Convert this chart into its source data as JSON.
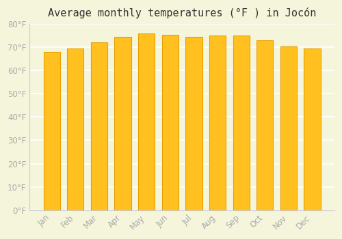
{
  "title": "Average monthly temperatures (°F ) in Jocón",
  "months": [
    "Jan",
    "Feb",
    "Mar",
    "Apr",
    "May",
    "Jun",
    "Jul",
    "Aug",
    "Sep",
    "Oct",
    "Nov",
    "Dec"
  ],
  "values": [
    68,
    69.5,
    72,
    74.5,
    76,
    75.5,
    74.5,
    75,
    75,
    73,
    70.5,
    69.5
  ],
  "bar_color_main": "#FFC020",
  "bar_color_edge": "#E8A000",
  "background_color": "#F5F5DC",
  "grid_color": "#FFFFFF",
  "ylim": [
    0,
    80
  ],
  "yticks": [
    0,
    10,
    20,
    30,
    40,
    50,
    60,
    70,
    80
  ],
  "ylabel_suffix": "°F",
  "title_fontsize": 11,
  "tick_fontsize": 8.5,
  "tick_color": "#AAAAAA",
  "spine_color": "#CCCCCC"
}
